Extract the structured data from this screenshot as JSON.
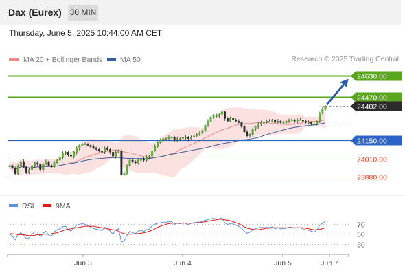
{
  "header": {
    "instrument": "Dax (Eurex)",
    "interval": "30 MIN",
    "datetime": "Thursday, June 5, 2025 10:44:00 AM CET"
  },
  "legend": {
    "ma20": "MA 20 + Bollinger Bands",
    "ma50": "MA 50",
    "credit": "Research © 2025 Trading Central"
  },
  "rsi_legend": {
    "rsi": "RSI",
    "ma9": "9MA"
  },
  "colors": {
    "resistance": "#5aa61e",
    "support": "#2c63c7",
    "pivot_minor": "#f08a8a",
    "price_tag": "#2b2b2b",
    "bollinger_fill": "#fbdcdc",
    "ma20": "#e88a8a",
    "ma50": "#3d5f99",
    "rsi_line": "#5b8ee0",
    "rsi_ma": "#dd1b1b",
    "arrow": "#2f5ca8"
  },
  "chart_data": {
    "type": "candlestick",
    "price_axis": {
      "min": 23760,
      "max": 24700
    },
    "levels": [
      {
        "value": 24630,
        "label": "24630.00",
        "kind": "resistance"
      },
      {
        "value": 24470,
        "label": "24470.00",
        "kind": "resistance"
      },
      {
        "value": 24402,
        "label": "24402.00",
        "kind": "current"
      },
      {
        "value": 24150,
        "label": "24150.00",
        "kind": "pivot"
      },
      {
        "value": 24010,
        "label": "24010.00",
        "kind": "support"
      },
      {
        "value": 23880,
        "label": "23880.00",
        "kind": "support"
      }
    ],
    "arrow": {
      "from": 24402,
      "to": 24630,
      "direction": "up"
    },
    "x_labels": [
      "Jun 3",
      "Jun 4",
      "Jun 5",
      "Jun 7"
    ],
    "price_closes": [
      23960,
      23940,
      23900,
      23960,
      23990,
      23950,
      23910,
      23930,
      23960,
      23980,
      23970,
      23930,
      23970,
      23990,
      23960,
      23950,
      23980,
      24000,
      24020,
      24050,
      24060,
      24040,
      24030,
      24060,
      24090,
      24110,
      24120,
      24120,
      24110,
      24100,
      24090,
      24080,
      24070,
      24060,
      24090,
      24080,
      24060,
      24030,
      24060,
      24070,
      23890,
      23900,
      23960,
      24000,
      23990,
      23980,
      24000,
      24010,
      24000,
      24020,
      24030,
      24070,
      24100,
      24130,
      24150,
      24160,
      24160,
      24170,
      24170,
      24150,
      24160,
      24160,
      24170,
      24170,
      24160,
      24170,
      24180,
      24190,
      24200,
      24220,
      24260,
      24290,
      24320,
      24330,
      24330,
      24340,
      24360,
      24310,
      24290,
      24310,
      24300,
      24290,
      24280,
      24250,
      24210,
      24180,
      24190,
      24230,
      24250,
      24270,
      24280,
      24280,
      24290,
      24290,
      24300,
      24280,
      24290,
      24280,
      24280,
      24290,
      24300,
      24300,
      24290,
      24300,
      24300,
      24290,
      24280,
      24280,
      24270,
      24270,
      24290,
      24350,
      24380,
      24402
    ],
    "rsi": {
      "y_ticks": [
        70,
        50,
        30
      ],
      "values": [
        50,
        45,
        38,
        48,
        52,
        47,
        40,
        42,
        49,
        54,
        53,
        44,
        51,
        55,
        47,
        45,
        54,
        58,
        60,
        64,
        65,
        58,
        55,
        62,
        67,
        69,
        70,
        69,
        66,
        63,
        61,
        59,
        58,
        56,
        63,
        60,
        55,
        49,
        58,
        60,
        33,
        36,
        47,
        55,
        52,
        50,
        55,
        57,
        54,
        58,
        59,
        66,
        69,
        71,
        72,
        73,
        73,
        74,
        74,
        69,
        71,
        70,
        72,
        71,
        68,
        71,
        72,
        73,
        73,
        75,
        77,
        78,
        80,
        81,
        79,
        80,
        82,
        72,
        68,
        71,
        69,
        67,
        65,
        61,
        55,
        51,
        53,
        58,
        60,
        62,
        63,
        62,
        63,
        62,
        64,
        60,
        62,
        60,
        60,
        61,
        63,
        63,
        61,
        62,
        62,
        60,
        58,
        57,
        55,
        53,
        58,
        67,
        71,
        75
      ],
      "ma9": [
        50,
        50,
        49,
        48,
        48,
        48,
        47,
        46,
        46,
        47,
        48,
        48,
        49,
        49,
        49,
        50,
        51,
        52,
        54,
        56,
        58,
        59,
        60,
        61,
        62,
        63,
        64,
        65,
        65,
        65,
        65,
        64,
        63,
        62,
        61,
        60,
        59,
        58,
        57,
        55,
        52,
        50,
        49,
        49,
        49,
        50,
        50,
        51,
        52,
        53,
        55,
        57,
        60,
        63,
        65,
        67,
        69,
        70,
        71,
        71,
        71,
        71,
        71,
        71,
        71,
        71,
        71,
        72,
        72,
        73,
        74,
        75,
        76,
        77,
        78,
        79,
        79,
        78,
        77,
        76,
        74,
        72,
        70,
        67,
        64,
        61,
        60,
        59,
        58,
        58,
        59,
        60,
        61,
        61,
        62,
        62,
        62,
        62,
        62,
        62,
        62,
        62,
        62,
        62,
        62,
        62,
        61,
        60,
        59,
        58,
        58,
        59,
        60,
        62
      ]
    }
  }
}
